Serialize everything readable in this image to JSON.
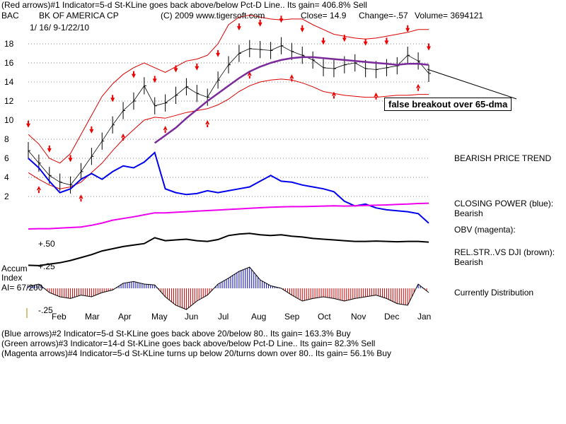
{
  "header": {
    "line1": "(Red arrows)#1 Indicator=5-d St-KLine goes back above/below Pct-D Line.. Its gain= 406.8% Sell",
    "ticker": "BAC",
    "company": "BK OF AMERICA CP",
    "copyright": "(C) 2009 www.tigersoft.com",
    "close": "Close=  14.9",
    "change": "Change=-.57",
    "volume": "Volume= 3694121",
    "date_range": "1/ 16/ 9-1/22/10"
  },
  "right_panel": {
    "trend": "BEARISH PRICE TREND",
    "closing_power_label": "CLOSING POWER (blue):",
    "closing_power_value": "Bearish",
    "obv_label": "OBV (magenta):",
    "relstr_label": "REL.STR..VS DJI (brown):",
    "relstr_value": "Bearish",
    "accum_status": "Currently Distribution"
  },
  "annotation": "false breakout over 65-dma",
  "indicator_labels": {
    "accum": "Accum",
    "index": "Index",
    "ai": "AI= 67/200",
    "plus50": "+.50",
    "plus25": "+.25",
    "minus25": "-.25"
  },
  "footer": {
    "line1": "(Blue arrows)#2 Indicator=5-d St-KLine goes back above 20/below 80.. Its gain= 163.3% Buy",
    "line2": "(Green arrows)#3 Indicator=14-d St-KLine goes back above/below Pct-D Line.. Its gain= 82.3% Sell",
    "line3": "(Magenta arrows)#4 Indicator=5-d St-KLine turns up below 20/turns down over 80.. Its gain= 56.1% Buy"
  },
  "colors": {
    "price": "#000000",
    "band": "#dd0000",
    "ma65": "#7b2a9b",
    "closing_power": "#0000ee",
    "obv": "#ee00ee",
    "relstr": "#000000",
    "accum_pos": "#0000aa",
    "accum_neg": "#cc0000",
    "arrow": "#ee0000"
  },
  "chart_data": {
    "type": "line",
    "y_axis": {
      "ticks": [
        2,
        4,
        6,
        8,
        10,
        12,
        14,
        16,
        18
      ],
      "ylim": [
        0,
        21
      ]
    },
    "x_axis": {
      "months": [
        "Feb",
        "Mar",
        "Apr",
        "May",
        "Jun",
        "Jul",
        "Aug",
        "Sep",
        "Oct",
        "Nov",
        "Dec",
        "Jan"
      ]
    },
    "grid": "horizontal dotted",
    "price": {
      "name": "BAC",
      "values": [
        6.8,
        5.5,
        4.2,
        3.5,
        3.2,
        4.6,
        6.2,
        7.8,
        9.5,
        11.0,
        12.0,
        13.6,
        11.5,
        11.8,
        12.6,
        13.5,
        12.8,
        12.4,
        14.2,
        15.8,
        17.0,
        17.5,
        17.4,
        17.3,
        17.8,
        17.2,
        16.8,
        16.3,
        15.5,
        15.4,
        15.8,
        16.0,
        15.4,
        15.3,
        15.5,
        15.7,
        16.8,
        16.2,
        14.9
      ]
    },
    "ma65": {
      "values": [
        null,
        null,
        null,
        null,
        null,
        null,
        null,
        null,
        null,
        null,
        null,
        null,
        7.6,
        8.4,
        9.2,
        10.2,
        11.1,
        12.0,
        12.8,
        13.6,
        14.4,
        15.1,
        15.6,
        16.0,
        16.3,
        16.5,
        16.6,
        16.6,
        16.5,
        16.4,
        16.3,
        16.2,
        16.1,
        16.0,
        15.9,
        15.8,
        15.9,
        15.9,
        15.8
      ]
    },
    "upper_band": {
      "values": [
        8.5,
        7.5,
        6.0,
        5.5,
        6.5,
        8.5,
        10.5,
        12.5,
        13.8,
        14.8,
        15.5,
        16.0,
        15.5,
        15.0,
        15.6,
        16.2,
        16.4,
        16.8,
        18.0,
        20.0,
        20.8,
        21.0,
        20.8,
        20.6,
        20.5,
        20.6,
        20.6,
        20.0,
        19.5,
        19.0,
        18.8,
        18.6,
        18.5,
        18.6,
        18.8,
        19.0,
        19.2,
        19.5,
        19.5
      ]
    },
    "lower_band": {
      "values": [
        4.5,
        3.8,
        3.2,
        2.8,
        3.0,
        3.5,
        4.5,
        5.5,
        6.8,
        8.0,
        9.0,
        10.0,
        10.3,
        10.2,
        10.5,
        10.8,
        11.0,
        11.2,
        11.6,
        12.2,
        13.0,
        13.6,
        14.0,
        14.2,
        14.3,
        14.2,
        13.9,
        13.5,
        13.0,
        12.8,
        12.6,
        12.5,
        12.4,
        12.4,
        12.5,
        12.6,
        12.6,
        12.7,
        12.7
      ]
    },
    "closing_power": {
      "name": "CLOSING POWER (blue)",
      "values": [
        6.0,
        5.0,
        3.6,
        2.4,
        2.8,
        3.8,
        4.4,
        3.8,
        4.6,
        5.2,
        5.0,
        5.6,
        6.6,
        2.8,
        2.4,
        2.2,
        2.3,
        2.6,
        2.4,
        2.6,
        2.8,
        3.0,
        3.6,
        4.2,
        3.6,
        3.5,
        3.2,
        3.0,
        2.8,
        2.5,
        1.5,
        1.0,
        1.2,
        0.8,
        0.6,
        0.5,
        0.4,
        0.2,
        -0.8
      ]
    },
    "obv": {
      "name": "OBV (magenta)",
      "values": [
        0.05,
        0.06,
        0.06,
        0.08,
        0.1,
        0.12,
        0.18,
        0.26,
        0.36,
        0.42,
        0.48,
        0.55,
        0.62,
        0.62,
        0.64,
        0.66,
        0.68,
        0.7,
        0.72,
        0.74,
        0.76,
        0.78,
        0.8,
        0.82,
        0.83,
        0.84,
        0.84,
        0.85,
        0.86,
        0.87,
        0.86,
        0.87,
        0.88,
        0.89,
        0.9,
        0.92,
        0.93,
        0.95,
        0.96
      ]
    },
    "relstr": {
      "name": "REL.STR..VS DJI (brown)",
      "values": [
        0.05,
        0.04,
        0.08,
        0.12,
        0.18,
        0.26,
        0.34,
        0.44,
        0.5,
        0.56,
        0.6,
        0.64,
        0.8,
        0.72,
        0.74,
        0.76,
        0.72,
        0.7,
        0.75,
        0.86,
        0.9,
        0.92,
        0.88,
        0.86,
        0.88,
        0.84,
        0.82,
        0.78,
        0.76,
        0.74,
        0.72,
        0.7,
        0.7,
        0.71,
        0.7,
        0.69,
        0.7,
        0.7,
        0.68
      ]
    },
    "accum_index": {
      "name": "Accum Index",
      "values": [
        0.02,
        0.05,
        -0.05,
        -0.1,
        -0.12,
        -0.08,
        -0.1,
        -0.05,
        -0.02,
        0.06,
        0.08,
        0.05,
        0.04,
        -0.1,
        -0.2,
        -0.25,
        -0.15,
        -0.08,
        0.05,
        0.12,
        0.2,
        0.25,
        0.1,
        0.03,
        0.0,
        -0.08,
        -0.15,
        -0.12,
        -0.1,
        -0.12,
        -0.15,
        -0.12,
        -0.1,
        -0.08,
        -0.12,
        -0.18,
        -0.2,
        0.05,
        -0.05
      ]
    }
  }
}
